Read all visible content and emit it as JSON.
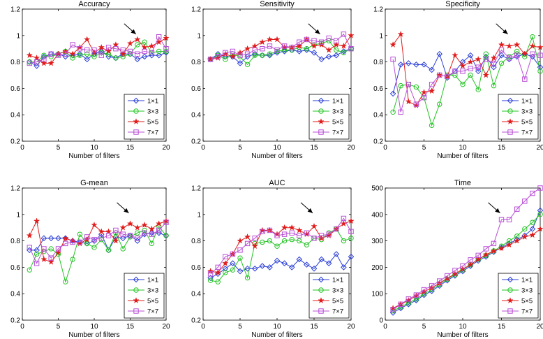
{
  "chart_data": [
    {
      "type": "line",
      "title": "Accuracy",
      "xlabel": "Number of filters",
      "ylabel": "",
      "xlim": [
        0,
        20
      ],
      "ylim": [
        0.2,
        1.2
      ],
      "xticks": [
        "0",
        "5",
        "10",
        "15",
        "20"
      ],
      "yticks": [
        "0.2",
        "0.4",
        "0.6",
        "0.8",
        "1",
        "1.2"
      ],
      "legend_position": "bottom-right",
      "annotation": {
        "type": "arrow",
        "points_to_x": 16
      },
      "x": [
        1,
        2,
        3,
        4,
        5,
        6,
        7,
        8,
        9,
        10,
        11,
        12,
        13,
        14,
        15,
        16,
        17,
        18,
        19,
        20
      ],
      "series": [
        {
          "name": "1×1",
          "color": "#2b3fd6",
          "marker": "diamond",
          "values": [
            0.8,
            0.77,
            0.84,
            0.86,
            0.86,
            0.84,
            0.85,
            0.86,
            0.82,
            0.86,
            0.88,
            0.84,
            0.83,
            0.86,
            0.86,
            0.82,
            0.84,
            0.85,
            0.85,
            0.87
          ]
        },
        {
          "name": "3×3",
          "color": "#22c422",
          "marker": "circle",
          "values": [
            0.8,
            0.8,
            0.85,
            0.84,
            0.86,
            0.88,
            0.83,
            0.85,
            0.86,
            0.84,
            0.87,
            0.86,
            0.83,
            0.84,
            0.86,
            0.93,
            0.95,
            0.87,
            0.88,
            0.88
          ]
        },
        {
          "name": "5×5",
          "color": "#e01b1b",
          "marker": "star",
          "values": [
            0.85,
            0.83,
            0.79,
            0.79,
            0.86,
            0.88,
            0.86,
            0.91,
            0.97,
            0.87,
            0.91,
            0.88,
            0.93,
            0.86,
            0.94,
            0.97,
            0.91,
            0.92,
            0.95,
            0.98
          ]
        },
        {
          "name": "7×7",
          "color": "#b94fd6",
          "marker": "square",
          "values": [
            0.79,
            0.8,
            0.82,
            0.86,
            0.85,
            0.86,
            0.93,
            0.9,
            0.89,
            0.89,
            0.85,
            0.91,
            0.9,
            0.89,
            0.88,
            0.86,
            0.88,
            0.87,
            0.99,
            0.9
          ]
        }
      ]
    },
    {
      "type": "line",
      "title": "Sensitivity",
      "xlabel": "Number of filters",
      "ylabel": "",
      "xlim": [
        0,
        20
      ],
      "ylim": [
        0.2,
        1.2
      ],
      "xticks": [
        "0",
        "5",
        "10",
        "15",
        "20"
      ],
      "yticks": [
        "0.2",
        "0.4",
        "0.6",
        "0.8",
        "1",
        "1.2"
      ],
      "legend_position": "bottom-right",
      "annotation": {
        "type": "arrow",
        "points_to_x": 16
      },
      "x": [
        1,
        2,
        3,
        4,
        5,
        6,
        7,
        8,
        9,
        10,
        11,
        12,
        13,
        14,
        15,
        16,
        17,
        18,
        19,
        20
      ],
      "series": [
        {
          "name": "1×1",
          "color": "#2b3fd6",
          "marker": "diamond",
          "values": [
            0.82,
            0.86,
            0.84,
            0.84,
            0.79,
            0.84,
            0.86,
            0.85,
            0.85,
            0.87,
            0.88,
            0.89,
            0.88,
            0.89,
            0.87,
            0.82,
            0.84,
            0.85,
            0.88,
            0.9
          ]
        },
        {
          "name": "3×3",
          "color": "#22c422",
          "marker": "circle",
          "values": [
            0.82,
            0.85,
            0.82,
            0.86,
            0.84,
            0.78,
            0.85,
            0.85,
            0.86,
            0.88,
            0.89,
            0.89,
            0.91,
            0.9,
            0.93,
            0.94,
            0.96,
            0.89,
            0.87,
            0.9
          ]
        },
        {
          "name": "5×5",
          "color": "#e01b1b",
          "marker": "star",
          "values": [
            0.82,
            0.83,
            0.86,
            0.84,
            0.87,
            0.9,
            0.92,
            0.95,
            0.97,
            0.97,
            0.91,
            0.91,
            0.92,
            0.97,
            0.92,
            0.93,
            0.89,
            0.93,
            0.92,
            1.0
          ]
        },
        {
          "name": "7×7",
          "color": "#b94fd6",
          "marker": "square",
          "values": [
            0.82,
            0.84,
            0.87,
            0.88,
            0.85,
            0.86,
            0.89,
            0.9,
            0.92,
            0.89,
            0.92,
            0.91,
            0.95,
            0.97,
            0.96,
            0.95,
            0.98,
            0.96,
            1.01,
            0.9
          ]
        }
      ]
    },
    {
      "type": "line",
      "title": "Specificity",
      "xlabel": "Number of filters",
      "ylabel": "",
      "xlim": [
        0,
        20
      ],
      "ylim": [
        0.2,
        1.2
      ],
      "xticks": [
        "0",
        "5",
        "10",
        "15",
        "20"
      ],
      "yticks": [
        "0.2",
        "0.4",
        "0.6",
        "0.8",
        "1",
        "1.2"
      ],
      "legend_position": "bottom-right",
      "annotation": {
        "type": "arrow",
        "points_to_x": 16
      },
      "x": [
        1,
        2,
        3,
        4,
        5,
        6,
        7,
        8,
        9,
        10,
        11,
        12,
        13,
        14,
        15,
        16,
        17,
        18,
        19,
        20
      ],
      "series": [
        {
          "name": "1×1",
          "color": "#2b3fd6",
          "marker": "diamond",
          "values": [
            0.56,
            0.78,
            0.79,
            0.78,
            0.78,
            0.74,
            0.86,
            0.68,
            0.73,
            0.8,
            0.85,
            0.73,
            0.84,
            0.76,
            0.85,
            0.82,
            0.84,
            0.86,
            0.84,
            0.76
          ]
        },
        {
          "name": "3×3",
          "color": "#22c422",
          "marker": "circle",
          "values": [
            0.42,
            0.62,
            0.63,
            0.61,
            0.53,
            0.32,
            0.48,
            0.7,
            0.7,
            0.63,
            0.7,
            0.59,
            0.86,
            0.62,
            0.79,
            0.84,
            0.88,
            0.84,
            0.99,
            0.73
          ]
        },
        {
          "name": "5×5",
          "color": "#e01b1b",
          "marker": "star",
          "values": [
            0.93,
            1.01,
            0.5,
            0.47,
            0.57,
            0.58,
            0.7,
            0.69,
            0.85,
            0.77,
            0.8,
            0.82,
            0.7,
            0.83,
            0.93,
            0.92,
            0.93,
            0.86,
            0.92,
            0.91
          ]
        },
        {
          "name": "7×7",
          "color": "#b94fd6",
          "marker": "square",
          "values": [
            0.82,
            0.42,
            0.63,
            0.48,
            0.53,
            0.63,
            0.7,
            0.69,
            0.73,
            0.73,
            0.75,
            0.76,
            0.82,
            0.79,
            0.89,
            0.83,
            0.85,
            0.67,
            0.86,
            0.85
          ]
        }
      ]
    },
    {
      "type": "line",
      "title": "G-mean",
      "xlabel": "Number of filters",
      "ylabel": "",
      "xlim": [
        0,
        20
      ],
      "ylim": [
        0.2,
        1.2
      ],
      "xticks": [
        "0",
        "5",
        "10",
        "15",
        "20"
      ],
      "yticks": [
        "0.2",
        "0.4",
        "0.6",
        "0.8",
        "1",
        "1.2"
      ],
      "legend_position": "bottom-right",
      "annotation": {
        "type": "arrow",
        "points_to_x": 15
      },
      "x": [
        1,
        2,
        3,
        4,
        5,
        6,
        7,
        8,
        9,
        10,
        11,
        12,
        13,
        14,
        15,
        16,
        17,
        18,
        19,
        20
      ],
      "series": [
        {
          "name": "1×1",
          "color": "#2b3fd6",
          "marker": "diamond",
          "values": [
            0.73,
            0.73,
            0.82,
            0.82,
            0.82,
            0.82,
            0.8,
            0.79,
            0.78,
            0.8,
            0.85,
            0.73,
            0.83,
            0.82,
            0.84,
            0.8,
            0.85,
            0.86,
            0.86,
            0.84
          ]
        },
        {
          "name": "3×3",
          "color": "#22c422",
          "marker": "circle",
          "values": [
            0.58,
            0.7,
            0.72,
            0.74,
            0.7,
            0.49,
            0.66,
            0.85,
            0.78,
            0.75,
            0.81,
            0.73,
            0.86,
            0.74,
            0.83,
            0.86,
            0.88,
            0.78,
            0.91,
            0.84
          ]
        },
        {
          "name": "5×5",
          "color": "#e01b1b",
          "marker": "star",
          "values": [
            0.84,
            0.95,
            0.66,
            0.64,
            0.71,
            0.82,
            0.8,
            0.78,
            0.81,
            0.92,
            0.87,
            0.87,
            0.8,
            0.9,
            0.93,
            0.9,
            0.92,
            0.89,
            0.93,
            0.95
          ]
        },
        {
          "name": "7×7",
          "color": "#b94fd6",
          "marker": "square",
          "values": [
            0.75,
            0.63,
            0.74,
            0.67,
            0.74,
            0.78,
            0.79,
            0.79,
            0.83,
            0.81,
            0.82,
            0.84,
            0.88,
            0.85,
            0.84,
            0.82,
            0.86,
            0.85,
            0.88,
            0.94
          ]
        }
      ]
    },
    {
      "type": "line",
      "title": "AUC",
      "xlabel": "Number of filters",
      "ylabel": "",
      "xlim": [
        0,
        20
      ],
      "ylim": [
        0.2,
        1.2
      ],
      "xticks": [
        "0",
        "5",
        "10",
        "15",
        "20"
      ],
      "yticks": [
        "0.2",
        "0.4",
        "0.6",
        "0.8",
        "1",
        "1.2"
      ],
      "legend_position": "bottom-right",
      "annotation": {
        "type": "arrow",
        "points_to_x": 15
      },
      "x": [
        1,
        2,
        3,
        4,
        5,
        6,
        7,
        8,
        9,
        10,
        11,
        12,
        13,
        14,
        15,
        16,
        17,
        18,
        19,
        20
      ],
      "series": [
        {
          "name": "1×1",
          "color": "#2b3fd6",
          "marker": "diamond",
          "values": [
            0.52,
            0.55,
            0.59,
            0.63,
            0.57,
            0.59,
            0.59,
            0.61,
            0.6,
            0.65,
            0.63,
            0.6,
            0.66,
            0.62,
            0.59,
            0.66,
            0.63,
            0.7,
            0.6,
            0.68
          ]
        },
        {
          "name": "3×3",
          "color": "#22c422",
          "marker": "circle",
          "values": [
            0.5,
            0.49,
            0.56,
            0.58,
            0.67,
            0.52,
            0.78,
            0.79,
            0.8,
            0.76,
            0.8,
            0.81,
            0.8,
            0.77,
            0.82,
            0.81,
            0.86,
            0.89,
            0.8,
            0.82
          ]
        },
        {
          "name": "5×5",
          "color": "#e01b1b",
          "marker": "star",
          "values": [
            0.57,
            0.56,
            0.63,
            0.7,
            0.8,
            0.83,
            0.76,
            0.88,
            0.88,
            0.85,
            0.9,
            0.9,
            0.88,
            0.85,
            0.91,
            0.82,
            0.84,
            0.89,
            0.93,
            0.95
          ]
        },
        {
          "name": "7×7",
          "color": "#b94fd6",
          "marker": "square",
          "values": [
            0.55,
            0.6,
            0.68,
            0.7,
            0.73,
            0.78,
            0.82,
            0.87,
            0.88,
            0.84,
            0.85,
            0.86,
            0.84,
            0.86,
            0.82,
            0.84,
            0.85,
            0.89,
            0.97,
            0.87
          ]
        }
      ]
    },
    {
      "type": "line",
      "title": "Time",
      "xlabel": "Number of filters",
      "ylabel": "",
      "xlim": [
        0,
        20
      ],
      "ylim": [
        0,
        500
      ],
      "xticks": [
        "0",
        "5",
        "10",
        "15",
        "20"
      ],
      "yticks": [
        "0",
        "100",
        "200",
        "300",
        "400",
        "500"
      ],
      "legend_position": "bottom-right",
      "annotation": {
        "type": "arrow",
        "points_to_x": 15
      },
      "x": [
        1,
        2,
        3,
        4,
        5,
        6,
        7,
        8,
        9,
        10,
        11,
        12,
        13,
        14,
        15,
        16,
        17,
        18,
        19,
        20
      ],
      "series": [
        {
          "name": "1×1",
          "color": "#2b3fd6",
          "marker": "diamond",
          "values": [
            28,
            45,
            60,
            75,
            95,
            110,
            130,
            150,
            168,
            185,
            205,
            225,
            240,
            258,
            275,
            290,
            305,
            320,
            345,
            415
          ]
        },
        {
          "name": "3×3",
          "color": "#22c422",
          "marker": "circle",
          "values": [
            35,
            50,
            65,
            80,
            100,
            115,
            135,
            155,
            172,
            190,
            210,
            230,
            245,
            262,
            280,
            300,
            318,
            345,
            370,
            400
          ]
        },
        {
          "name": "5×5",
          "color": "#e01b1b",
          "marker": "star",
          "values": [
            45,
            60,
            75,
            92,
            108,
            122,
            140,
            158,
            175,
            193,
            210,
            230,
            248,
            262,
            272,
            285,
            300,
            315,
            322,
            345
          ]
        },
        {
          "name": "7×7",
          "color": "#b94fd6",
          "marker": "square",
          "values": [
            40,
            60,
            80,
            95,
            115,
            130,
            148,
            168,
            188,
            205,
            228,
            245,
            270,
            290,
            380,
            380,
            420,
            450,
            480,
            500
          ]
        }
      ]
    }
  ]
}
